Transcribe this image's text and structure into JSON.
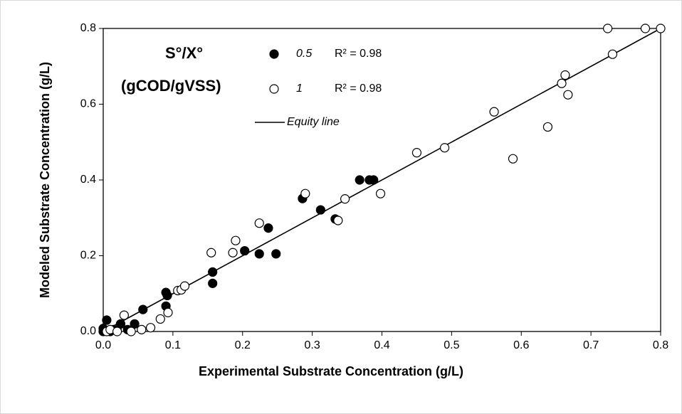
{
  "chart_data": {
    "type": "scatter",
    "xlabel": "Experimental Substrate Concentration (g/L)",
    "ylabel": "Modeled Substrate Concentration (g/L)",
    "legend_title": [
      "S°/X°",
      "(gCOD/gVSS)"
    ],
    "xlim": [
      0,
      0.8
    ],
    "ylim": [
      0,
      0.8
    ],
    "xticks": [
      {
        "value": 0,
        "label": "0.0"
      },
      0.1,
      0.2,
      0.3,
      0.4,
      0.5,
      0.6,
      0.7,
      0.8
    ],
    "yticks": [
      {
        "value": 0,
        "label": "0.0"
      },
      0.2,
      0.4,
      0.6,
      0.8
    ],
    "series": [
      {
        "name": "0.5",
        "r2_label": "R² = 0.98",
        "color": "#000000",
        "filled": true,
        "x": [
          0.0,
          0.0,
          0.005,
          0.01,
          0.015,
          0.02,
          0.025,
          0.035,
          0.045,
          0.057,
          0.09,
          0.092,
          0.09,
          0.157,
          0.157,
          0.203,
          0.224,
          0.237,
          0.248,
          0.286,
          0.312,
          0.333,
          0.368,
          0.382,
          0.388
        ],
        "values": [
          0.008,
          0.0,
          0.03,
          0.0,
          0.005,
          0.002,
          0.02,
          0.005,
          0.02,
          0.058,
          0.103,
          0.095,
          0.067,
          0.157,
          0.127,
          0.213,
          0.205,
          0.273,
          0.205,
          0.351,
          0.321,
          0.297,
          0.4,
          0.4,
          0.4
        ]
      },
      {
        "name": "1",
        "r2_label": "R² = 0.98",
        "color": "#000000",
        "filled": false,
        "x": [
          0.005,
          0.01,
          0.02,
          0.03,
          0.04,
          0.055,
          0.068,
          0.082,
          0.093,
          0.107,
          0.112,
          0.117,
          0.155,
          0.186,
          0.19,
          0.224,
          0.29,
          0.337,
          0.347,
          0.398,
          0.45,
          0.49,
          0.561,
          0.588,
          0.638,
          0.658,
          0.663,
          0.667,
          0.731,
          0.724,
          0.778,
          0.8
        ],
        "values": [
          0.0,
          0.005,
          0.0,
          0.043,
          0.0,
          0.005,
          0.01,
          0.033,
          0.05,
          0.108,
          0.11,
          0.12,
          0.208,
          0.208,
          0.24,
          0.286,
          0.364,
          0.293,
          0.35,
          0.364,
          0.472,
          0.485,
          0.58,
          0.456,
          0.54,
          0.655,
          0.677,
          0.625,
          0.732,
          0.8,
          0.8,
          0.8
        ]
      }
    ],
    "reference_line": {
      "name": "Equity line",
      "color": "#000000",
      "x": [
        0,
        0.8
      ],
      "values": [
        0,
        0.8
      ]
    }
  }
}
